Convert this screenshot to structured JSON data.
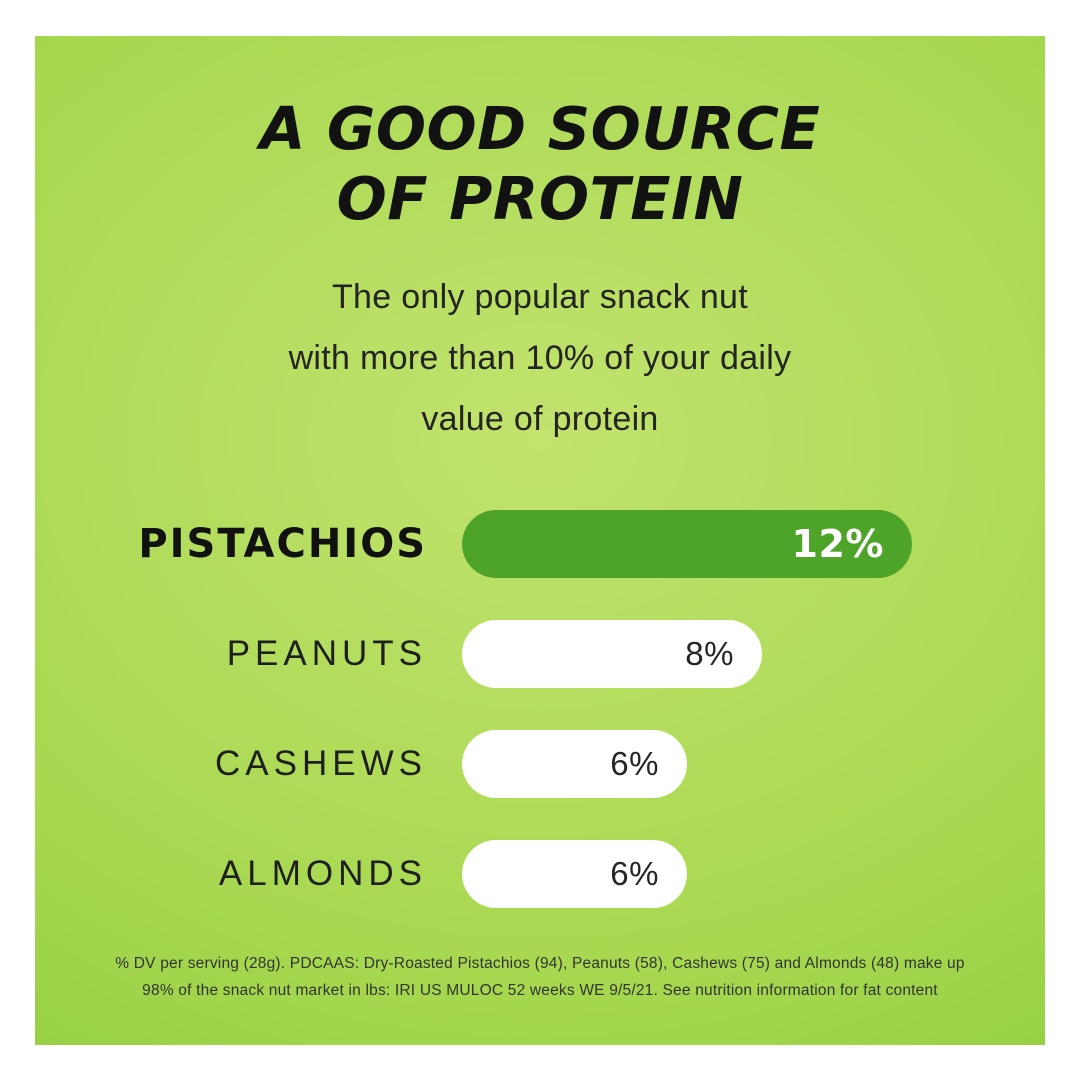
{
  "header": {
    "title_line1": "A GOOD SOURCE",
    "title_line2": "OF PROTEIN"
  },
  "subtitle": {
    "line1": "The only popular snack nut",
    "line2": "with more than 10% of your daily",
    "line3": "value of protein"
  },
  "chart_data": {
    "type": "bar",
    "orientation": "horizontal",
    "title": "A GOOD SOURCE OF PROTEIN",
    "subtitle": "The only popular snack nut with more than 10% of your daily value of protein",
    "categories": [
      "PISTACHIOS",
      "PEANUTS",
      "CASHEWS",
      "ALMONDS"
    ],
    "values": [
      12,
      8,
      6,
      6
    ],
    "value_labels": [
      "12%",
      "8%",
      "6%",
      "6%"
    ],
    "xlim": [
      0,
      12
    ],
    "highlight_index": 0,
    "bar_colors": [
      "#4ea428",
      "#ffffff",
      "#ffffff",
      "#ffffff"
    ],
    "value_label_colors": [
      "#ffffff",
      "#262626",
      "#262626",
      "#262626"
    ],
    "grid": false,
    "legend": false
  },
  "footnote": {
    "line1": "% DV per serving (28g). PDCAAS: Dry-Roasted Pistachios (94), Peanuts (58), Cashews (75) and Almonds (48) make up",
    "line2": "98% of the snack nut market in lbs: IRI US MULOC 52 weeks WE 9/5/21. See nutrition information for fat content"
  },
  "colors": {
    "page_background": "#ffffff",
    "panel_center": "#c2e36e",
    "panel_mid": "#a7d850",
    "panel_edge": "#86c83a",
    "title_text": "#121212",
    "body_text": "#242424",
    "highlight_bar": "#4ea428",
    "footnote_text": "#333333"
  }
}
